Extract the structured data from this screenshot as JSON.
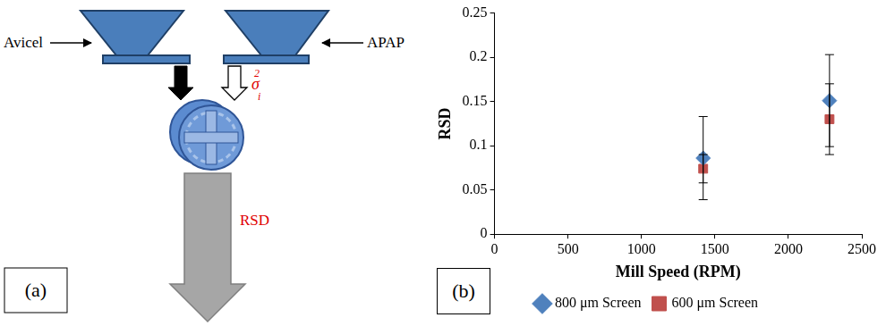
{
  "diagram": {
    "panel": "(a)",
    "inputs": [
      "Avicel",
      "APAP"
    ],
    "variance": {
      "symbol": "σ",
      "sup": "2",
      "sub": "i"
    },
    "output": "RSD"
  },
  "chart_panel": "(b)",
  "chart_data": {
    "type": "scatter",
    "x_label": "Mill Speed (RPM)",
    "y_label": "RSD",
    "series": [
      {
        "name": "800 μm Screen",
        "color": "#4f81bd",
        "marker": "diamond",
        "x": [
          1420,
          2280
        ],
        "values": [
          0.086,
          0.151
        ],
        "errors": [
          0.047,
          0.052
        ]
      },
      {
        "name": "600 μm Screen",
        "color": "#c0504d",
        "marker": "square",
        "x": [
          1420,
          2280
        ],
        "values": [
          0.074,
          0.13
        ],
        "errors": [
          0.016,
          0.04
        ]
      }
    ],
    "xlim": [
      0,
      2500
    ],
    "xticks": [
      0,
      500,
      1000,
      1500,
      2000,
      2500
    ],
    "ylim": [
      0,
      0.25
    ],
    "yticks": [
      0,
      0.05,
      0.1,
      0.15,
      0.2,
      0.25
    ],
    "grid": false,
    "legend": "bottom"
  }
}
